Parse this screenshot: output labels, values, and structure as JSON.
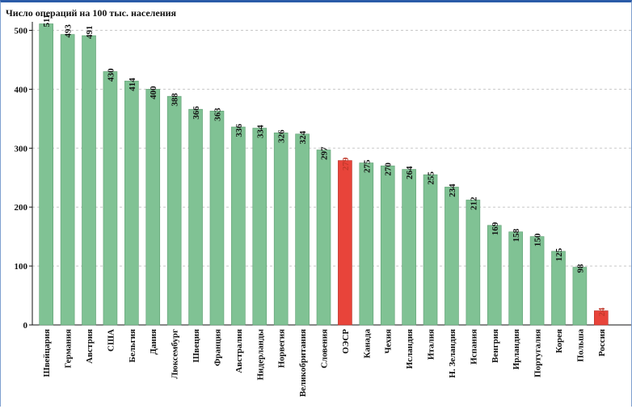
{
  "colors": {
    "bar": "#80c294",
    "bar_stroke": "#5e9e72",
    "highlight": "#e8443a",
    "highlight_stroke": "#b52e26",
    "highlight_text": "#c0392b",
    "text": "#111111",
    "grid": "#c8c8c8"
  },
  "chart_data": {
    "type": "bar",
    "title": "Число операций на 100 тыс. населения",
    "xlabel": "",
    "ylabel": "",
    "ylim": [
      0,
      510
    ],
    "yticks": [
      0,
      100,
      200,
      300,
      400,
      500
    ],
    "grid": true,
    "categories": [
      "Швейцария",
      "Германия",
      "Австрия",
      "США",
      "Бельгия",
      "Дания",
      "Люксембург",
      "Швеция",
      "Франция",
      "Австралия",
      "Нидерланды",
      "Норвегия",
      "Великобритания",
      "Словения",
      "ОЭСР",
      "Канада",
      "Чехия",
      "Исландия",
      "Италия",
      "Н. Зеландия",
      "Испания",
      "Венгрия",
      "Ирландия",
      "Португалия",
      "Корея",
      "Польша",
      "Россия"
    ],
    "values": [
      511,
      493,
      491,
      430,
      414,
      400,
      388,
      366,
      363,
      336,
      334,
      326,
      324,
      297,
      279,
      275,
      270,
      264,
      255,
      234,
      212,
      169,
      158,
      150,
      125,
      98,
      24
    ],
    "highlighted": [
      "ОЭСР",
      "Россия"
    ]
  }
}
